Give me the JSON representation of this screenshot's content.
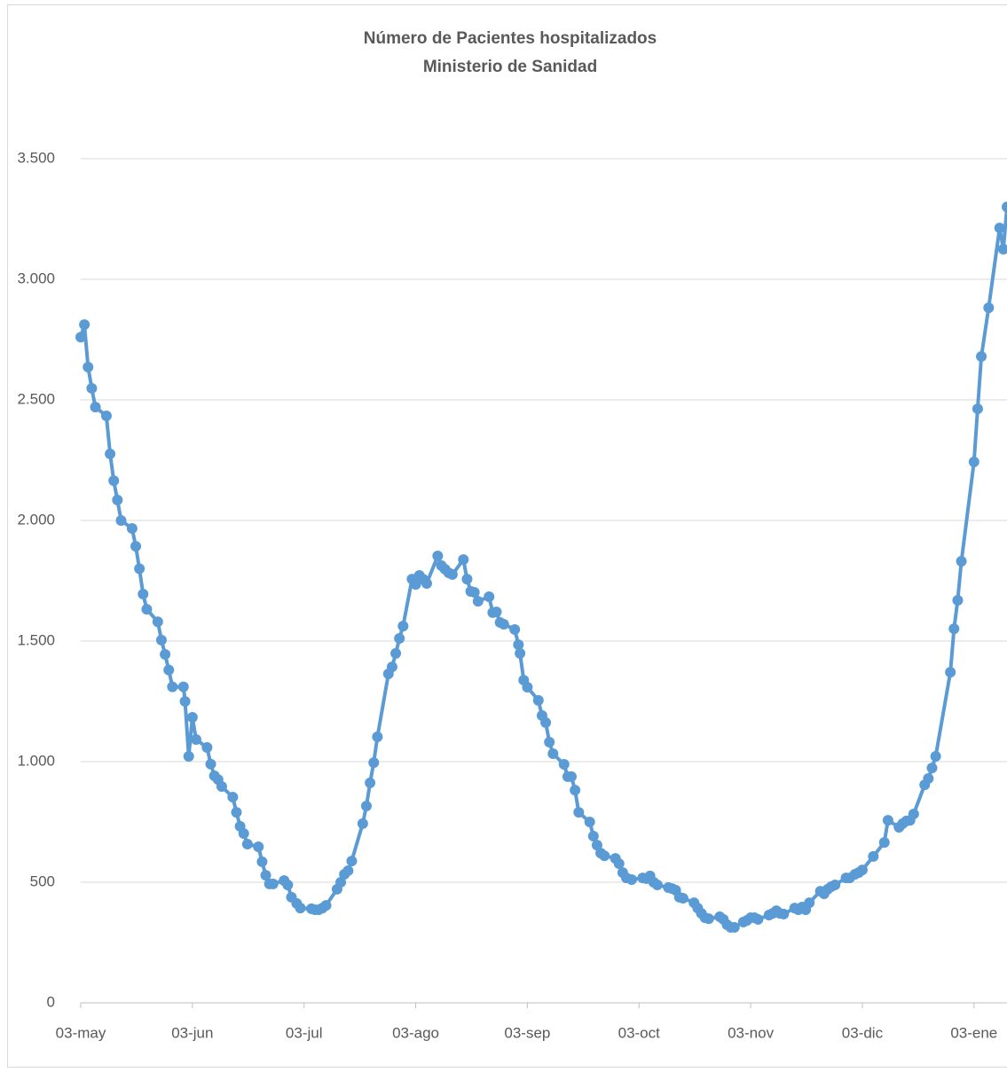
{
  "chart_data": {
    "type": "line",
    "title": "Número de Pacientes hospitalizados",
    "subtitle": "Ministerio de Sanidad",
    "x": [
      "03-may",
      "04-may",
      "05-may",
      "06-may",
      "07-may",
      "10-may",
      "11-may",
      "12-may",
      "13-may",
      "14-may",
      "17-may",
      "18-may",
      "19-may",
      "20-may",
      "21-may",
      "24-may",
      "25-may",
      "26-may",
      "27-may",
      "28-may",
      "31-may",
      "01-jun",
      "02-jun",
      "03-jun",
      "04-jun",
      "07-jun",
      "08-jun",
      "09-jun",
      "10-jun",
      "11-jun",
      "14-jun",
      "15-jun",
      "16-jun",
      "17-jun",
      "18-jun",
      "21-jun",
      "22-jun",
      "23-jun",
      "24-jun",
      "25-jun",
      "28-jun",
      "29-jun",
      "30-jun",
      "01-jul",
      "02-jul",
      "05-jul",
      "06-jul",
      "07-jul",
      "08-jul",
      "09-jul",
      "12-jul",
      "13-jul",
      "14-jul",
      "15-jul",
      "16-jul",
      "19-jul",
      "20-jul",
      "21-jul",
      "22-jul",
      "23-jul",
      "26-jul",
      "27-jul",
      "28-jul",
      "29-jul",
      "30-jul",
      "02-ago",
      "03-ago",
      "04-ago",
      "05-ago",
      "06-ago",
      "09-ago",
      "10-ago",
      "11-ago",
      "12-ago",
      "13-ago",
      "16-ago",
      "17-ago",
      "18-ago",
      "19-ago",
      "20-ago",
      "23-ago",
      "24-ago",
      "25-ago",
      "26-ago",
      "27-ago",
      "30-ago",
      "31-ago",
      "01-sep",
      "02-sep",
      "03-sep",
      "06-sep",
      "07-sep",
      "08-sep",
      "09-sep",
      "10-sep",
      "13-sep",
      "14-sep",
      "15-sep",
      "16-sep",
      "17-sep",
      "20-sep",
      "21-sep",
      "22-sep",
      "23-sep",
      "24-sep",
      "27-sep",
      "28-sep",
      "29-sep",
      "30-sep",
      "01-oct",
      "04-oct",
      "05-oct",
      "06-oct",
      "07-oct",
      "08-oct",
      "11-oct",
      "12-oct",
      "13-oct",
      "14-oct",
      "15-oct",
      "18-oct",
      "19-oct",
      "20-oct",
      "21-oct",
      "22-oct",
      "25-oct",
      "26-oct",
      "27-oct",
      "28-oct",
      "29-oct",
      "01-nov",
      "02-nov",
      "03-nov",
      "04-nov",
      "05-nov",
      "08-nov",
      "09-nov",
      "10-nov",
      "11-nov",
      "12-nov",
      "15-nov",
      "16-nov",
      "17-nov",
      "18-nov",
      "19-nov",
      "22-nov",
      "23-nov",
      "24-nov",
      "25-nov",
      "26-nov",
      "29-nov",
      "30-nov",
      "01-dic",
      "02-dic",
      "03-dic",
      "06-dic",
      "09-dic",
      "10-dic",
      "13-dic",
      "14-dic",
      "15-dic",
      "16-dic",
      "17-dic",
      "20-dic",
      "21-dic",
      "22-dic",
      "23-dic",
      "27-dic",
      "28-dic",
      "29-dic",
      "30-dic",
      "03-ene",
      "04-ene",
      "05-ene",
      "07-ene",
      "10-ene",
      "11-ene",
      "12-ene"
    ],
    "series": [
      {
        "color": "#5b9bd5",
        "values": [
          2760,
          2812,
          2636,
          2548,
          2470,
          2434,
          2276,
          2165,
          2085,
          2000,
          1967,
          1893,
          1800,
          1695,
          1632,
          1580,
          1504,
          1445,
          1380,
          1310,
          1310,
          1250,
          1022,
          1184,
          1092,
          1059,
          990,
          941,
          926,
          897,
          853,
          790,
          732,
          702,
          658,
          647,
          585,
          529,
          493,
          493,
          507,
          489,
          438,
          412,
          393,
          390,
          386,
          386,
          393,
          404,
          471,
          500,
          533,
          548,
          588,
          743,
          816,
          912,
          996,
          1103,
          1364,
          1393,
          1449,
          1511,
          1562,
          1757,
          1735,
          1772,
          1757,
          1739,
          1853,
          1813,
          1798,
          1783,
          1776,
          1838,
          1757,
          1706,
          1702,
          1665,
          1684,
          1618,
          1621,
          1577,
          1570,
          1548,
          1485,
          1449,
          1338,
          1309,
          1254,
          1191,
          1162,
          1081,
          1033,
          989,
          938,
          938,
          882,
          790,
          750,
          691,
          654,
          621,
          610,
          599,
          577,
          540,
          518,
          511,
          518,
          515,
          526,
          500,
          489,
          478,
          474,
          467,
          438,
          434,
          415,
          393,
          371,
          353,
          349,
          357,
          346,
          324,
          313,
          313,
          335,
          342,
          353,
          353,
          346,
          364,
          371,
          382,
          371,
          368,
          393,
          386,
          397,
          386,
          415,
          463,
          452,
          471,
          482,
          489,
          518,
          518,
          533,
          540,
          551,
          607,
          665,
          757,
          728,
          743,
          754,
          757,
          783,
          904,
          930,
          974,
          1022,
          1371,
          1551,
          1669,
          1831,
          2243,
          2463,
          2680,
          2882,
          3213,
          3125,
          3300
        ]
      }
    ],
    "xlim": [
      "03-may",
      "12-ene"
    ],
    "xticks": [
      "03-may",
      "03-jun",
      "03-jul",
      "03-ago",
      "03-sep",
      "03-oct",
      "03-nov",
      "03-dic",
      "03-ene"
    ],
    "ylim": [
      0,
      3500
    ],
    "yticks": [
      0,
      500,
      {
        "value": 1000,
        "label": "1.000"
      },
      {
        "value": 1500,
        "label": "1.500"
      },
      {
        "value": 2000,
        "label": "2.000"
      },
      {
        "value": 2500,
        "label": "2.500"
      },
      {
        "value": 3000,
        "label": "3.000"
      },
      {
        "value": 3500,
        "label": "3.500"
      }
    ],
    "grid": true
  }
}
